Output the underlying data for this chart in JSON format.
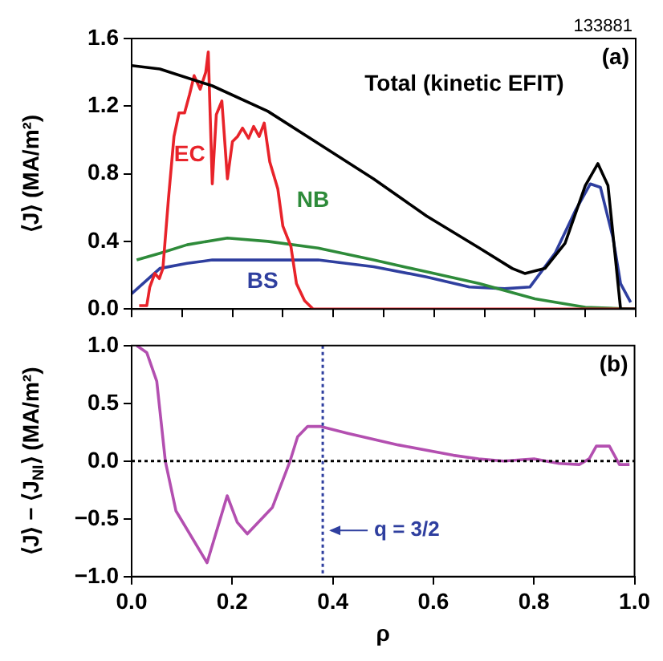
{
  "chart_data": [
    {
      "type": "line",
      "ylabel": "⟨J⟩ (MA/m²)",
      "annotations": [
        "133881",
        "(a)"
      ],
      "xlim": [
        0,
        1
      ],
      "ylim": [
        0,
        1.6
      ],
      "xticks": [
        0,
        0.1,
        0.2,
        0.3,
        0.4,
        0.5,
        0.6,
        0.7,
        0.8,
        0.9,
        1
      ],
      "yticks": [
        {
          "value": 0,
          "label": "0.0"
        },
        {
          "value": 0.4,
          "label": "0.4"
        },
        {
          "value": 0.8,
          "label": "0.8"
        },
        {
          "value": 1.2,
          "label": "1.2"
        },
        {
          "value": 1.6,
          "label": "1.6"
        }
      ],
      "tick_labels": "y",
      "grid": false,
      "legend": false,
      "series": [
        {
          "name": "Total (kinetic EFIT)",
          "color": "#000000",
          "x": [
            0,
            0.056,
            0.16,
            0.27,
            0.37,
            0.48,
            0.585,
            0.69,
            0.755,
            0.78,
            0.82,
            0.86,
            0.9,
            0.925,
            0.945,
            0.97,
            1
          ],
          "values": [
            1.44,
            1.42,
            1.32,
            1.17,
            0.98,
            0.77,
            0.55,
            0.36,
            0.24,
            0.21,
            0.24,
            0.39,
            0.73,
            0.86,
            0.73,
            0,
            0
          ]
        },
        {
          "name": "EC",
          "color": "#e8232a",
          "x": [
            0.015,
            0.03,
            0.036,
            0.046,
            0.055,
            0.062,
            0.073,
            0.084,
            0.094,
            0.105,
            0.115,
            0.124,
            0.136,
            0.147,
            0.152,
            0.16,
            0.168,
            0.179,
            0.19,
            0.2,
            0.21,
            0.22,
            0.232,
            0.242,
            0.253,
            0.263,
            0.274,
            0.29,
            0.3,
            0.316,
            0.327,
            0.343,
            0.36,
            1
          ],
          "values": [
            0.02,
            0.02,
            0.13,
            0.21,
            0.18,
            0.24,
            0.65,
            1.02,
            1.16,
            1.16,
            1.27,
            1.38,
            1.3,
            1.4,
            1.52,
            0.74,
            1.15,
            1.23,
            0.77,
            0.99,
            1.02,
            1.07,
            1.01,
            1.08,
            1.02,
            1.1,
            0.87,
            0.71,
            0.49,
            0.37,
            0.15,
            0.05,
            0,
            0
          ]
        },
        {
          "name": "NB",
          "color": "#2e8b3a",
          "x": [
            0.01,
            0.056,
            0.11,
            0.19,
            0.27,
            0.37,
            0.48,
            0.585,
            0.69,
            0.8,
            0.9,
            1
          ],
          "values": [
            0.29,
            0.33,
            0.38,
            0.42,
            0.4,
            0.36,
            0.29,
            0.22,
            0.15,
            0.06,
            0.01,
            0
          ]
        },
        {
          "name": "BS",
          "color": "#2f3f9f",
          "x": [
            0,
            0.056,
            0.11,
            0.16,
            0.27,
            0.37,
            0.48,
            0.585,
            0.67,
            0.74,
            0.79,
            0.84,
            0.88,
            0.91,
            0.93,
            0.955,
            0.97,
            0.99
          ],
          "values": [
            0.09,
            0.24,
            0.27,
            0.29,
            0.29,
            0.29,
            0.25,
            0.19,
            0.13,
            0.12,
            0.13,
            0.33,
            0.58,
            0.74,
            0.72,
            0.42,
            0.15,
            0.04
          ]
        }
      ]
    },
    {
      "type": "line",
      "ylabel": "⟨J⟩ − ⟨J$_{NI}$⟩ (MA/m²)",
      "xlabel": "ρ",
      "annotations": [
        "(b)",
        {
          "text": "q = 3/2",
          "x": 0.38,
          "y": -0.6
        }
      ],
      "xlim": [
        0,
        1
      ],
      "ylim": [
        -1,
        1
      ],
      "xticks": [
        {
          "value": 0,
          "label": "0.0"
        },
        {
          "value": 0.2,
          "label": "0.2"
        },
        {
          "value": 0.4,
          "label": "0.4"
        },
        {
          "value": 0.6,
          "label": "0.6"
        },
        {
          "value": 0.8,
          "label": "0.8"
        },
        {
          "value": 1,
          "label": "1.0"
        }
      ],
      "yticks": [
        {
          "value": -1,
          "label": "−1.0"
        },
        {
          "value": -0.5,
          "label": "−0.5"
        },
        {
          "value": 0,
          "label": "0.0"
        },
        {
          "value": 0.5,
          "label": "0.5"
        },
        {
          "value": 1,
          "label": "1.0"
        }
      ],
      "grid": false,
      "legend": false,
      "ref_lines": [
        {
          "axis": "y",
          "value": 0,
          "color": "#000000",
          "line_style": "dotted"
        },
        {
          "axis": "x",
          "value": 0.38,
          "color": "#2f3f9f",
          "line_style": "dotted"
        }
      ],
      "series": [
        {
          "color": "#b34fb0",
          "x": [
            0.01,
            0.03,
            0.05,
            0.067,
            0.088,
            0.15,
            0.19,
            0.21,
            0.23,
            0.28,
            0.315,
            0.33,
            0.35,
            0.375,
            0.43,
            0.53,
            0.64,
            0.69,
            0.74,
            0.8,
            0.85,
            0.89,
            0.91,
            0.924,
            0.95,
            0.97,
            0.99
          ],
          "values": [
            1,
            0.94,
            0.69,
            0,
            -0.43,
            -0.88,
            -0.3,
            -0.53,
            -0.63,
            -0.4,
            0,
            0.21,
            0.3,
            0.3,
            0.24,
            0.14,
            0.05,
            0.02,
            0,
            0.02,
            -0.02,
            -0.03,
            0.02,
            0.13,
            0.13,
            -0.03,
            -0.03
          ]
        }
      ]
    }
  ]
}
